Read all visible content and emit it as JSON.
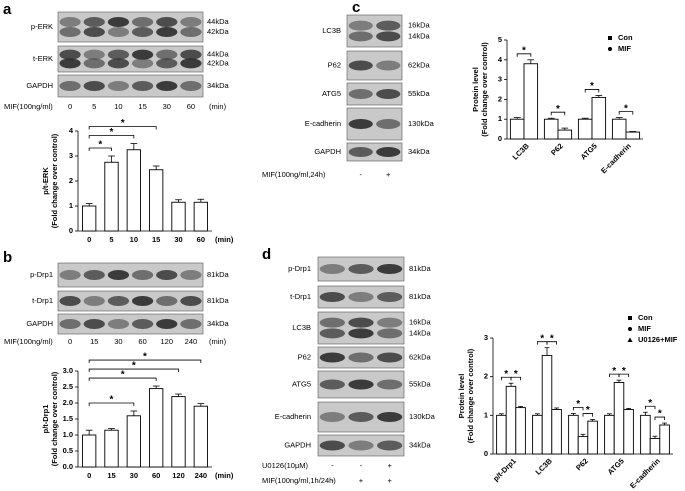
{
  "panels": [
    "a",
    "b",
    "c",
    "d"
  ],
  "blots": [
    {
      "rows": [
        {
          "label": "p-ERK",
          "kda": [
            "44kDa",
            "42kDa"
          ]
        },
        {
          "label": "t-ERK",
          "kda": [
            "44kDa",
            "42kDa"
          ]
        },
        {
          "label": "GAPDH",
          "kda": [
            "34kDa"
          ]
        }
      ],
      "conditions": [
        {
          "label": "MIF(100ng/ml)",
          "lanes": [
            "0",
            "5",
            "10",
            "15",
            "30",
            "60"
          ],
          "unit": "(min)"
        }
      ]
    },
    {
      "rows": [
        {
          "label": "p-Drp1",
          "kda": [
            "81kDa"
          ]
        },
        {
          "label": "t-Drp1",
          "kda": [
            "81kDa"
          ]
        },
        {
          "label": "GAPDH",
          "kda": [
            "34kDa"
          ]
        }
      ],
      "conditions": [
        {
          "label": "MIF(100ng/ml)",
          "lanes": [
            "0",
            "15",
            "30",
            "60",
            "120",
            "240"
          ],
          "unit": "(min)"
        }
      ]
    },
    {
      "rows": [
        {
          "label": "LC3B",
          "kda": [
            "16kDa",
            "14kDa"
          ]
        },
        {
          "label": "P62",
          "kda": [
            "62kDa"
          ]
        },
        {
          "label": "ATG5",
          "kda": [
            "55kDa"
          ]
        },
        {
          "label": "E-cadherin",
          "kda": [
            "130kDa"
          ]
        },
        {
          "label": "GAPDH",
          "kda": [
            "34kDa"
          ]
        }
      ],
      "conditions": [
        {
          "label": "MIF(100ng/ml,24h)",
          "lanes": [
            "-",
            "+"
          ]
        }
      ]
    },
    {
      "rows": [
        {
          "label": "p-Drp1",
          "kda": [
            "81kDa"
          ]
        },
        {
          "label": "t-Drp1",
          "kda": [
            "81kDa"
          ]
        },
        {
          "label": "LC3B",
          "kda": [
            "16kDa",
            "14kDa"
          ]
        },
        {
          "label": "P62",
          "kda": [
            "62kDa"
          ]
        },
        {
          "label": "ATG5",
          "kda": [
            "55kDa"
          ]
        },
        {
          "label": "E-cadherin",
          "kda": [
            "130kDa"
          ]
        },
        {
          "label": "GAPDH",
          "kda": [
            "34kDa"
          ]
        }
      ],
      "conditions": [
        {
          "label": "U0126(10μM)",
          "lanes": [
            "-",
            "-",
            "+"
          ]
        },
        {
          "label": "MIF(100ng/ml,1h/24h)",
          "lanes": [
            "-",
            "+",
            "+"
          ]
        }
      ]
    }
  ],
  "chart_data": [
    {
      "type": "bar",
      "ylabel": [
        "p/t-ERK",
        "(Fold change over control)"
      ],
      "xunit": "(min)",
      "categories": [
        "0",
        "5",
        "10",
        "15",
        "30",
        "60"
      ],
      "series": [
        {
          "values": [
            1.0,
            2.75,
            3.25,
            2.45,
            1.15,
            1.15
          ],
          "errors": [
            0.1,
            0.25,
            0.25,
            0.15,
            0.1,
            0.12
          ]
        }
      ],
      "ylim": [
        0,
        4
      ],
      "yticks": [
        0,
        1,
        2,
        3,
        4
      ],
      "significance": [
        {
          "text": "*",
          "between": [
            0,
            1
          ]
        },
        {
          "text": "*",
          "between": [
            0,
            2
          ]
        },
        {
          "text": "*",
          "between": [
            0,
            3
          ]
        }
      ]
    },
    {
      "type": "bar",
      "ylabel": [
        "p/t-Drp1",
        "(Fold change over control)"
      ],
      "xunit": "(min)",
      "categories": [
        "0",
        "15",
        "30",
        "60",
        "120",
        "240"
      ],
      "series": [
        {
          "values": [
            1.0,
            1.15,
            1.6,
            2.45,
            2.2,
            1.9
          ],
          "errors": [
            0.15,
            0.05,
            0.15,
            0.08,
            0.08,
            0.08
          ]
        }
      ],
      "ylim": [
        0,
        3
      ],
      "yticks": [
        {
          "value": 0,
          "label": "0.0"
        },
        {
          "value": 0.5,
          "label": "0.5"
        },
        {
          "value": 1,
          "label": "1.0"
        },
        {
          "value": 1.5,
          "label": "1.5"
        },
        {
          "value": 2,
          "label": "2.0"
        },
        {
          "value": 2.5,
          "label": "2.5"
        },
        {
          "value": 3,
          "label": "3.0"
        }
      ],
      "significance": [
        {
          "text": "*",
          "between": [
            0,
            2
          ]
        },
        {
          "text": "*",
          "between": [
            0,
            3
          ]
        },
        {
          "text": "*",
          "between": [
            0,
            4
          ]
        },
        {
          "text": "*",
          "between": [
            0,
            5
          ]
        }
      ]
    },
    {
      "type": "grouped-bar",
      "ylabel": [
        "Protein level",
        "(Fold change over control)"
      ],
      "categories": [
        "LC3B",
        "P62",
        "ATG5",
        "E-cadherin"
      ],
      "series": [
        {
          "name": "Con",
          "values": [
            1.0,
            1.0,
            1.0,
            1.0
          ],
          "errors": [
            0.08,
            0.05,
            0.05,
            0.08
          ]
        },
        {
          "name": "MIF",
          "values": [
            3.8,
            0.45,
            2.1,
            0.35
          ],
          "errors": [
            0.2,
            0.1,
            0.1,
            0.03
          ]
        }
      ],
      "ylim": [
        0,
        5
      ],
      "yticks": [
        0,
        1,
        2,
        3,
        4,
        5
      ],
      "significance": [
        {
          "text": "*",
          "category": 0,
          "between": [
            0,
            1
          ]
        },
        {
          "text": "*",
          "category": 1,
          "between": [
            0,
            1
          ]
        },
        {
          "text": "*",
          "category": 2,
          "between": [
            0,
            1
          ]
        },
        {
          "text": "*",
          "category": 3,
          "between": [
            0,
            1
          ]
        }
      ]
    },
    {
      "type": "grouped-bar",
      "ylabel": [
        "Protein level",
        "(Fold change over control)"
      ],
      "categories": [
        "p/t-Drp1",
        "LC3B",
        "P62",
        "ATG5",
        "E-cadherin"
      ],
      "series": [
        {
          "name": "Con",
          "values": [
            1.0,
            1.0,
            1.0,
            1.0,
            1.0
          ],
          "errors": [
            0.04,
            0.04,
            0.05,
            0.04,
            0.08
          ]
        },
        {
          "name": "MIF",
          "values": [
            1.75,
            2.55,
            0.45,
            1.85,
            0.4
          ],
          "errors": [
            0.08,
            0.2,
            0.06,
            0.06,
            0.06
          ]
        },
        {
          "name": "U0126+MIF",
          "values": [
            1.2,
            1.15,
            0.85,
            1.15,
            0.75
          ],
          "errors": [
            0.03,
            0.04,
            0.04,
            0.03,
            0.05
          ]
        }
      ],
      "ylim": [
        0,
        3
      ],
      "yticks": [
        0,
        1,
        2,
        3
      ],
      "significance": [
        {
          "text": "*",
          "category": 0,
          "between": [
            0,
            1
          ]
        },
        {
          "text": "*",
          "category": 0,
          "between": [
            1,
            2
          ]
        },
        {
          "text": "*",
          "category": 1,
          "between": [
            0,
            1
          ]
        },
        {
          "text": "*",
          "category": 1,
          "between": [
            1,
            2
          ]
        },
        {
          "text": "*",
          "category": 2,
          "between": [
            0,
            1
          ]
        },
        {
          "text": "*",
          "category": 2,
          "between": [
            1,
            2
          ]
        },
        {
          "text": "*",
          "category": 3,
          "between": [
            0,
            1
          ]
        },
        {
          "text": "*",
          "category": 3,
          "between": [
            1,
            2
          ]
        },
        {
          "text": "*",
          "category": 4,
          "between": [
            0,
            1
          ]
        },
        {
          "text": "*",
          "category": 4,
          "between": [
            1,
            2
          ]
        }
      ]
    }
  ]
}
